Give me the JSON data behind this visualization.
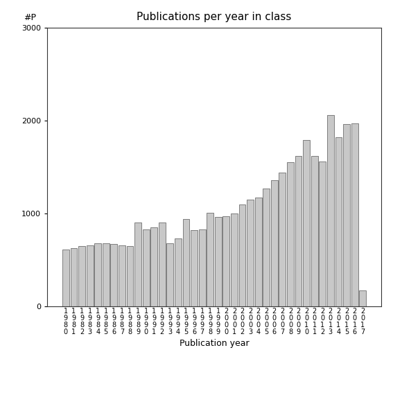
{
  "title": "Publications per year in class",
  "xlabel": "Publication year",
  "ylabel": "#P",
  "ylim": [
    0,
    3000
  ],
  "yticks": [
    0,
    1000,
    2000,
    3000
  ],
  "bar_color": "#c8c8c8",
  "bar_edge_color": "#555555",
  "background_color": "#ffffff",
  "years": [
    "1980",
    "1981",
    "1982",
    "1983",
    "1984",
    "1985",
    "1986",
    "1987",
    "1988",
    "1989",
    "1990",
    "1991",
    "1992",
    "1993",
    "1994",
    "1995",
    "1996",
    "1997",
    "1998",
    "1999",
    "2000",
    "2001",
    "2002",
    "2003",
    "2004",
    "2005",
    "2006",
    "2007",
    "2008",
    "2009",
    "2010",
    "2011",
    "2012",
    "2013",
    "2014",
    "2015",
    "2016",
    "2017"
  ],
  "values": [
    610,
    625,
    650,
    660,
    680,
    680,
    670,
    655,
    650,
    900,
    830,
    850,
    900,
    680,
    730,
    940,
    820,
    830,
    1010,
    965,
    970,
    1000,
    1100,
    1150,
    1170,
    1270,
    1360,
    1440,
    1550,
    1620,
    1790,
    1620,
    1560,
    2060,
    1820,
    1960,
    1970,
    170
  ],
  "figsize": [
    5.67,
    5.67
  ],
  "dpi": 100,
  "title_fontsize": 11,
  "axis_label_fontsize": 9,
  "tick_fontsize": 8,
  "ylabel_fontsize": 9
}
